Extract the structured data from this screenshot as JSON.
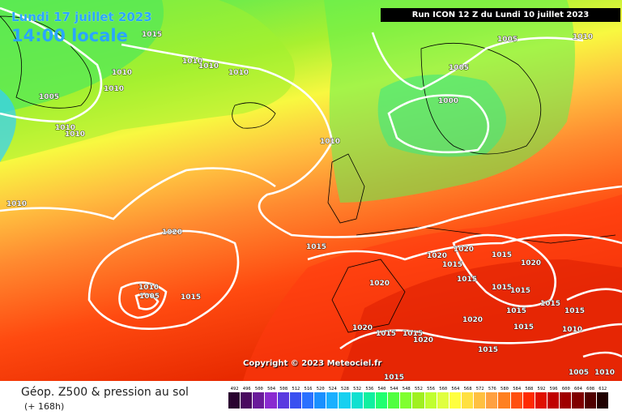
{
  "header": {
    "date": "Lundi 17 juillet 2023",
    "time": "14:00 locale",
    "run": "Run ICON 12 Z du Lundi 10 juillet 2023"
  },
  "copyright": "Copyright © 2023 Meteociel.fr",
  "footer": {
    "title": "Géop. Z500 & pression au sol",
    "subtitle": "(+ 168h)"
  },
  "isobar_labels": [
    "1015",
    "1010",
    "1010",
    "1010",
    "1010",
    "1005",
    "1010",
    "1010",
    "1010",
    "1005",
    "1010",
    "1005",
    "1000",
    "1010",
    "1010",
    "1020",
    "1015",
    "1010",
    "1005",
    "1015",
    "1020",
    "1020",
    "1015",
    "1015",
    "1020",
    "1015",
    "1020",
    "1015",
    "1015",
    "1015",
    "1015",
    "1015",
    "1020",
    "1010",
    "1015",
    "1020",
    "1015",
    "1015",
    "1020",
    "1015",
    "1015",
    "1005",
    "1010"
  ],
  "legend": {
    "labels": [
      "492",
      "496",
      "500",
      "504",
      "508",
      "512",
      "516",
      "520",
      "524",
      "528",
      "532",
      "536",
      "540",
      "544",
      "548",
      "552",
      "556",
      "560",
      "564",
      "568",
      "572",
      "576",
      "580",
      "584",
      "588",
      "592",
      "596",
      "600",
      "604",
      "608",
      "612"
    ],
    "colors": [
      "#2a0330",
      "#4a0a60",
      "#6a1a9a",
      "#8a2ad0",
      "#5a3ae0",
      "#3a50f0",
      "#2a70ff",
      "#1a90ff",
      "#1ab0ff",
      "#18d0f0",
      "#10e0d0",
      "#10f0a0",
      "#20ff70",
      "#50ff40",
      "#80ff30",
      "#a0f020",
      "#c0ff30",
      "#e0ff40",
      "#ffff40",
      "#ffe040",
      "#ffc040",
      "#ffa040",
      "#ff8020",
      "#ff5010",
      "#ff2a00",
      "#e01000",
      "#c00000",
      "#a00000",
      "#800000",
      "#500000",
      "#200000"
    ]
  }
}
